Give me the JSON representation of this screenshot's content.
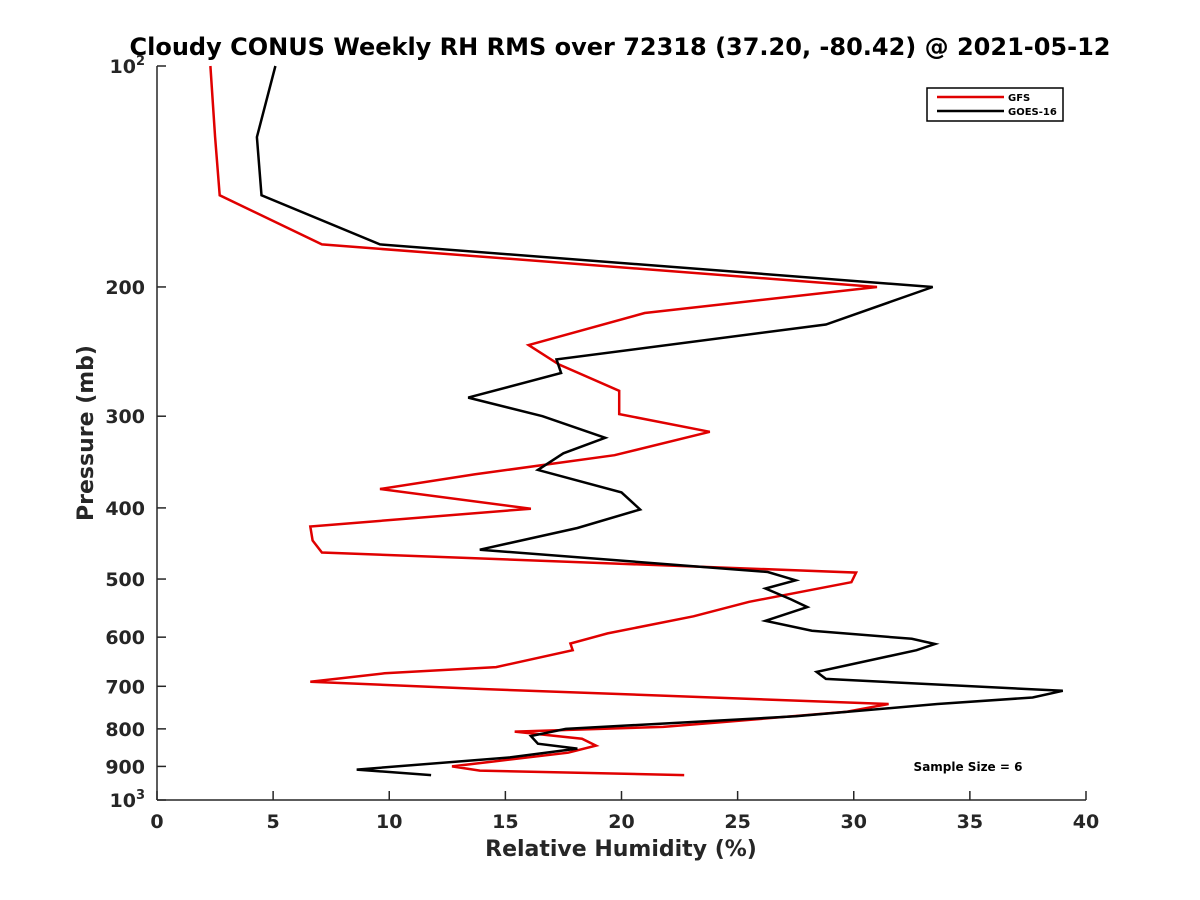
{
  "chart_data": {
    "type": "line",
    "title": "Cloudy CONUS Weekly RH RMS over 72318 (37.20, -80.42) @ 2021-05-12",
    "xlabel": "Relative Humidity (%)",
    "ylabel": "Pressure (mb)",
    "xlim": [
      0,
      40
    ],
    "ylim": [
      100,
      1000
    ],
    "yscale": "log",
    "y_reversed": true,
    "xticks": [
      {
        "value": 0,
        "label": "0"
      },
      {
        "value": 5,
        "label": "5"
      },
      {
        "value": 10,
        "label": "10"
      },
      {
        "value": 15,
        "label": "15"
      },
      {
        "value": 20,
        "label": "20"
      },
      {
        "value": 25,
        "label": "25"
      },
      {
        "value": 30,
        "label": "30"
      },
      {
        "value": 35,
        "label": "35"
      },
      {
        "value": 40,
        "label": "40"
      }
    ],
    "yticks": [
      {
        "value": 100,
        "base": "10",
        "exp": "2"
      },
      {
        "value": 200,
        "label": "200"
      },
      {
        "value": 300,
        "label": "300"
      },
      {
        "value": 400,
        "label": "400"
      },
      {
        "value": 500,
        "label": "500"
      },
      {
        "value": 600,
        "label": "600"
      },
      {
        "value": 700,
        "label": "700"
      },
      {
        "value": 800,
        "label": "800"
      },
      {
        "value": 900,
        "label": "900"
      },
      {
        "value": 1000,
        "base": "10",
        "exp": "3"
      }
    ],
    "legend_position": "top-right",
    "annotation": "Sample Size = 6",
    "series": [
      {
        "name": "GFS",
        "color": "#e00000",
        "points": [
          [
            2.3,
            100
          ],
          [
            2.5,
            125
          ],
          [
            2.7,
            150
          ],
          [
            7.1,
            175
          ],
          [
            31.0,
            200
          ],
          [
            21.0,
            217
          ],
          [
            16.0,
            240
          ],
          [
            17.3,
            255
          ],
          [
            19.9,
            277
          ],
          [
            19.9,
            298
          ],
          [
            23.8,
            315
          ],
          [
            19.7,
            339
          ],
          [
            13.7,
            360
          ],
          [
            9.6,
            377
          ],
          [
            16.1,
            401
          ],
          [
            6.6,
            424
          ],
          [
            6.7,
            443
          ],
          [
            7.1,
            460
          ],
          [
            30.1,
            490
          ],
          [
            29.9,
            505
          ],
          [
            25.5,
            537
          ],
          [
            23.1,
            562
          ],
          [
            19.4,
            593
          ],
          [
            17.8,
            612
          ],
          [
            17.9,
            625
          ],
          [
            14.6,
            659
          ],
          [
            9.8,
            672
          ],
          [
            6.6,
            690
          ],
          [
            14.0,
            706
          ],
          [
            31.5,
            740
          ],
          [
            29.7,
            758
          ],
          [
            24.4,
            783
          ],
          [
            21.8,
            795
          ],
          [
            15.4,
            807
          ],
          [
            18.3,
            825
          ],
          [
            18.9,
            843
          ],
          [
            17.7,
            862
          ],
          [
            12.7,
            900
          ],
          [
            13.9,
            912
          ],
          [
            22.7,
            925
          ]
        ]
      },
      {
        "name": "GOES-16",
        "color": "#000000",
        "points": [
          [
            5.1,
            100
          ],
          [
            4.3,
            125
          ],
          [
            4.5,
            150
          ],
          [
            9.6,
            175
          ],
          [
            33.4,
            200
          ],
          [
            28.8,
            225
          ],
          [
            17.2,
            251
          ],
          [
            17.4,
            262
          ],
          [
            13.4,
            283
          ],
          [
            16.6,
            300
          ],
          [
            19.3,
            321
          ],
          [
            17.5,
            337
          ],
          [
            16.4,
            355
          ],
          [
            20.0,
            381
          ],
          [
            20.8,
            402
          ],
          [
            18.1,
            426
          ],
          [
            13.9,
            456
          ],
          [
            26.3,
            489
          ],
          [
            27.5,
            502
          ],
          [
            26.2,
            515
          ],
          [
            27.3,
            533
          ],
          [
            28.0,
            546
          ],
          [
            26.2,
            570
          ],
          [
            28.2,
            588
          ],
          [
            32.5,
            603
          ],
          [
            33.5,
            613
          ],
          [
            32.7,
            625
          ],
          [
            28.4,
            669
          ],
          [
            28.8,
            684
          ],
          [
            39.0,
            710
          ],
          [
            37.7,
            725
          ],
          [
            33.6,
            740
          ],
          [
            27.5,
            769
          ],
          [
            17.6,
            800
          ],
          [
            16.1,
            818
          ],
          [
            16.4,
            838
          ],
          [
            18.1,
            851
          ],
          [
            15.2,
            875
          ],
          [
            8.6,
            909
          ],
          [
            11.8,
            925
          ]
        ]
      }
    ]
  }
}
